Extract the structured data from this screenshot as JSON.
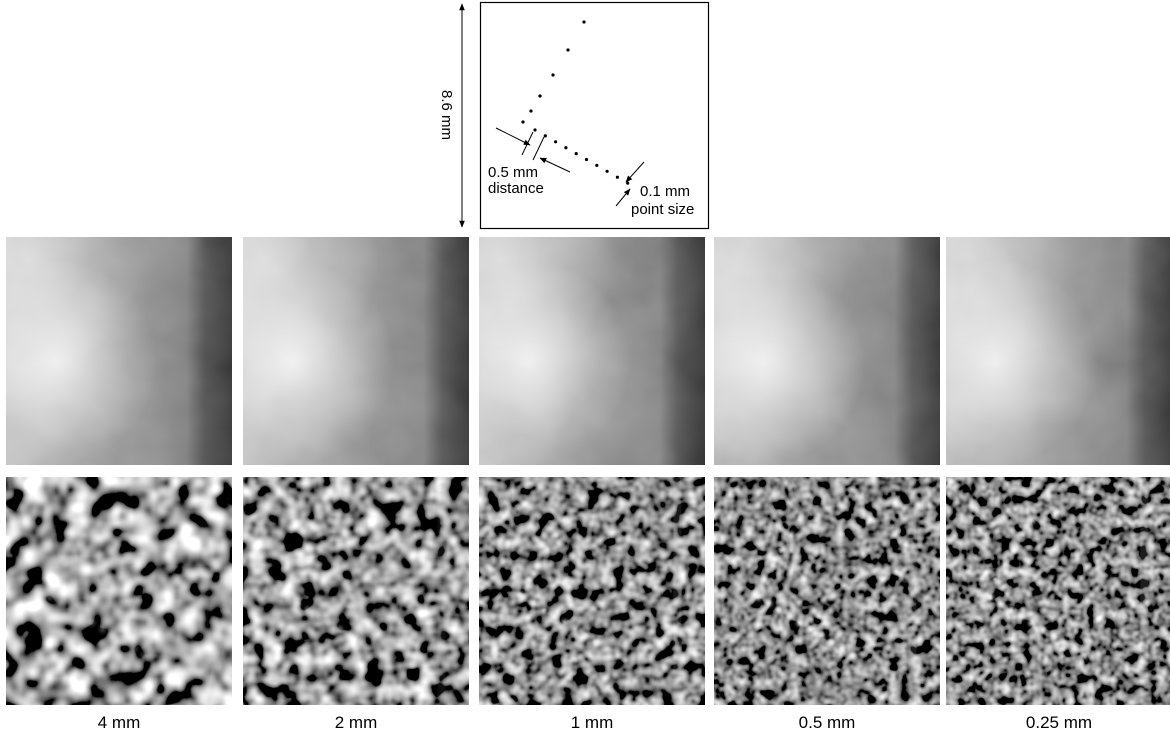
{
  "diagram": {
    "height_label": "8.6 mm",
    "distance_label": [
      "0.5 mm",
      "distance"
    ],
    "point_size_label": [
      "0.1 mm",
      "point size"
    ]
  },
  "columns": [
    {
      "label": "4 mm"
    },
    {
      "label": "2 mm"
    },
    {
      "label": "1 mm"
    },
    {
      "label": "0.5 mm"
    },
    {
      "label": "0.25 mm"
    }
  ]
}
